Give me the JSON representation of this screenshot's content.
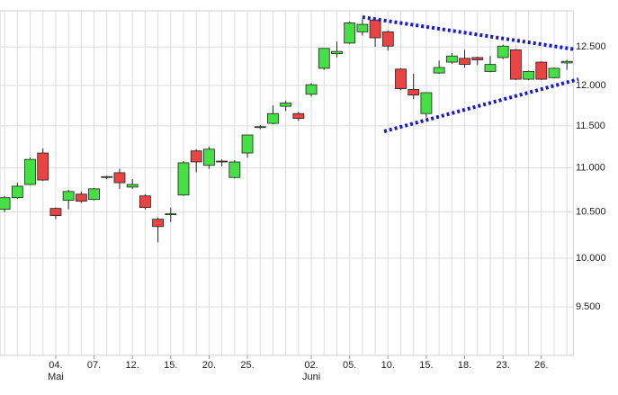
{
  "chart_data": {
    "type": "candlestick",
    "categories": [
      null,
      null,
      null,
      null,
      "04.",
      null,
      null,
      "07.",
      null,
      null,
      "12.",
      null,
      null,
      "15.",
      null,
      null,
      "20.",
      null,
      null,
      "25.",
      null,
      null,
      null,
      null,
      "02.",
      null,
      null,
      "05.",
      null,
      null,
      "10.",
      null,
      null,
      "15.",
      null,
      null,
      "18.",
      null,
      null,
      "23.",
      null,
      null,
      "26.",
      null,
      null
    ],
    "category_groups": [
      null,
      null,
      null,
      null,
      "Mai",
      null,
      null,
      null,
      null,
      null,
      null,
      null,
      null,
      null,
      null,
      null,
      null,
      null,
      null,
      null,
      null,
      null,
      null,
      null,
      "Juni",
      null,
      null,
      null,
      null,
      null,
      null,
      null,
      null,
      null,
      null,
      null,
      null,
      null,
      null,
      null,
      null,
      null,
      null,
      null,
      null
    ],
    "open": [
      10530,
      10660,
      10810,
      11175,
      10540,
      10630,
      10700,
      10640,
      10890,
      10945,
      10780,
      10680,
      10420,
      10470,
      10690,
      11200,
      11030,
      11080,
      10890,
      11175,
      11480,
      11530,
      11740,
      11650,
      11890,
      12220,
      12410,
      12550,
      12700,
      12860,
      12700,
      12210,
      11950,
      11650,
      12160,
      12300,
      12350,
      12360,
      12180,
      12360,
      12460,
      12080,
      12300,
      12100,
      12290
    ],
    "high": [
      10680,
      10830,
      11120,
      11230,
      10550,
      10750,
      10730,
      10770,
      10910,
      10990,
      10870,
      10700,
      10440,
      10550,
      11080,
      11220,
      11250,
      11100,
      11090,
      11390,
      11510,
      11750,
      11810,
      11670,
      12030,
      12480,
      12570,
      12840,
      12870,
      12880,
      12720,
      12220,
      12150,
      11910,
      12320,
      12420,
      12460,
      12370,
      12380,
      12530,
      12470,
      12190,
      12310,
      12230,
      12330
    ],
    "low": [
      10500,
      10650,
      10800,
      10850,
      10420,
      10530,
      10600,
      10630,
      10870,
      10760,
      10760,
      10530,
      10170,
      10390,
      10680,
      10950,
      10990,
      11020,
      10880,
      11120,
      11460,
      11520,
      11680,
      11560,
      11860,
      12200,
      12360,
      12540,
      12650,
      12500,
      12450,
      11940,
      11830,
      11600,
      12150,
      12280,
      12230,
      12260,
      12170,
      12340,
      12070,
      12070,
      12070,
      12090,
      12200
    ],
    "close": [
      10660,
      10790,
      11100,
      10861,
      10460,
      10730,
      10620,
      10760,
      10900,
      10830,
      10810,
      10550,
      10340,
      10480,
      11060,
      11070,
      11220,
      11070,
      11070,
      11390,
      11490,
      11650,
      11780,
      11590,
      12010,
      12480,
      12440,
      12820,
      12800,
      12620,
      12510,
      11960,
      11880,
      11910,
      12230,
      12380,
      12270,
      12330,
      12270,
      12510,
      12080,
      12180,
      12080,
      12220,
      12310
    ],
    "up_color": "#44e044",
    "down_color": "#e84444",
    "outline_color": "#222222",
    "log_scale": true,
    "grid": true,
    "ylim": [
      9025,
      12985
    ],
    "yticks": [
      {
        "value": 9500,
        "label": "9.500"
      },
      {
        "value": 10000,
        "label": "10.000"
      },
      {
        "value": 10500,
        "label": "10.500"
      },
      {
        "value": 11000,
        "label": "11.000"
      },
      {
        "value": 11500,
        "label": "11.500"
      },
      {
        "value": 12000,
        "label": "12.000"
      },
      {
        "value": 12500,
        "label": "12.500"
      }
    ],
    "trendlines": [
      {
        "x": [
          28,
          44.7
        ],
        "values": [
          12898,
          12465
        ],
        "color": "#1a1acc"
      },
      {
        "x": [
          29.7,
          44.9
        ],
        "values": [
          11433,
          12080
        ],
        "color": "#1a1acc"
      }
    ]
  }
}
